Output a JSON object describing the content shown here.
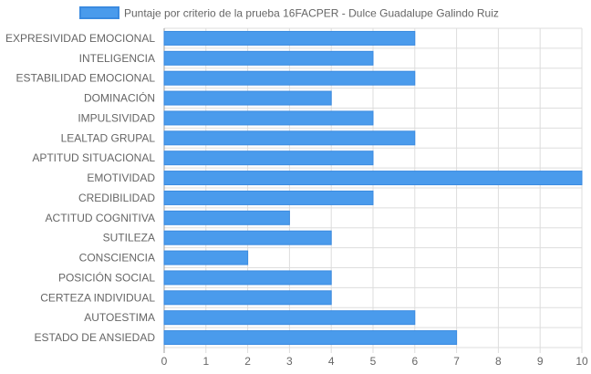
{
  "chart_data": {
    "type": "bar",
    "orientation": "horizontal",
    "legend": {
      "label": "Puntaje por criterio de la prueba 16FACPER - Dulce Guadalupe Galindo Ruiz",
      "position": "top"
    },
    "categories": [
      "EXPRESIVIDAD EMOCIONAL",
      "INTELIGENCIA",
      "ESTABILIDAD EMOCIONAL",
      "DOMINACIÓN",
      "IMPULSIVIDAD",
      "LEALTAD GRUPAL",
      "APTITUD SITUACIONAL",
      "EMOTIVIDAD",
      "CREDIBILIDAD",
      "ACTITUD COGNITIVA",
      "SUTILEZA",
      "CONSCIENCIA",
      "POSICIÓN SOCIAL",
      "CERTEZA INDIVIDUAL",
      "AUTOESTIMA",
      "ESTADO DE ANSIEDAD"
    ],
    "series": [
      {
        "name": "Puntaje por criterio de la prueba 16FACPER - Dulce Guadalupe Galindo Ruiz",
        "values": [
          6,
          5,
          6,
          4,
          5,
          6,
          5,
          10,
          5,
          3,
          4,
          2,
          4,
          4,
          6,
          7
        ]
      }
    ],
    "xlim": [
      0,
      10
    ],
    "xticks": [
      "0",
      "1",
      "2",
      "3",
      "4",
      "5",
      "6",
      "7",
      "8",
      "9",
      "10"
    ],
    "grid": true,
    "colors": {
      "bar_fill": "#4a9bec",
      "bar_stroke": "#3a8ae0",
      "grid": "#dddddd",
      "axis": "#9e9e9e"
    }
  }
}
